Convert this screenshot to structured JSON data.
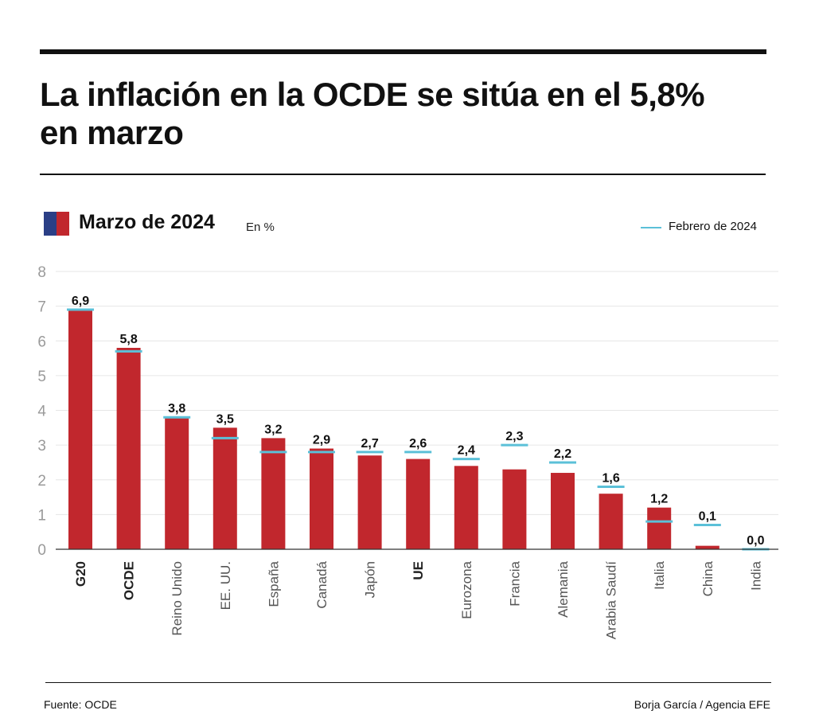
{
  "title": "La inflación en la OCDE se sitúa en el 5,8% en marzo",
  "series_label": "Marzo de 2024",
  "unit_label": "En %",
  "legend_label": "Febrero de 2024",
  "source": "Fuente: OCDE",
  "credit": "Borja García / Agencia EFE",
  "colors": {
    "bar": "#c1272d",
    "previous_marker": "#5bc0d8",
    "swatch_blue": "#2b3f86",
    "swatch_red": "#c1272d",
    "grid": "#e6e6e6",
    "axis_tick": "#9a9a9a"
  },
  "chart_data": {
    "type": "bar",
    "categories": [
      "G20",
      "OCDE",
      "Reino Unido",
      "EE. UU.",
      "España",
      "Canadá",
      "Japón",
      "UE",
      "Eurozona",
      "Francia",
      "Alemania",
      "Arabia Saudí",
      "Italia",
      "China",
      "India"
    ],
    "bold_categories": [
      "G20",
      "OCDE",
      "UE"
    ],
    "series": [
      {
        "name": "Marzo de 2024",
        "values": [
          6.9,
          5.8,
          3.8,
          3.5,
          3.2,
          2.9,
          2.7,
          2.6,
          2.4,
          2.3,
          2.2,
          1.6,
          1.2,
          0.1,
          0.0
        ]
      },
      {
        "name": "Febrero de 2024",
        "values": [
          6.9,
          5.7,
          3.8,
          3.2,
          2.8,
          2.8,
          2.8,
          2.8,
          2.6,
          3.0,
          2.5,
          1.8,
          0.8,
          0.7,
          0.0
        ]
      }
    ],
    "data_labels": [
      "6,9",
      "5,8",
      "3,8",
      "3,5",
      "3,2",
      "2,9",
      "2,7",
      "2,6",
      "2,4",
      "2,3",
      "2,2",
      "1,6",
      "1,2",
      "0,1",
      "0,0"
    ],
    "y_ticks": [
      "0",
      "1",
      "2",
      "3",
      "4",
      "5",
      "6",
      "7",
      "8"
    ],
    "ylim": [
      0,
      8
    ],
    "grid": true
  }
}
